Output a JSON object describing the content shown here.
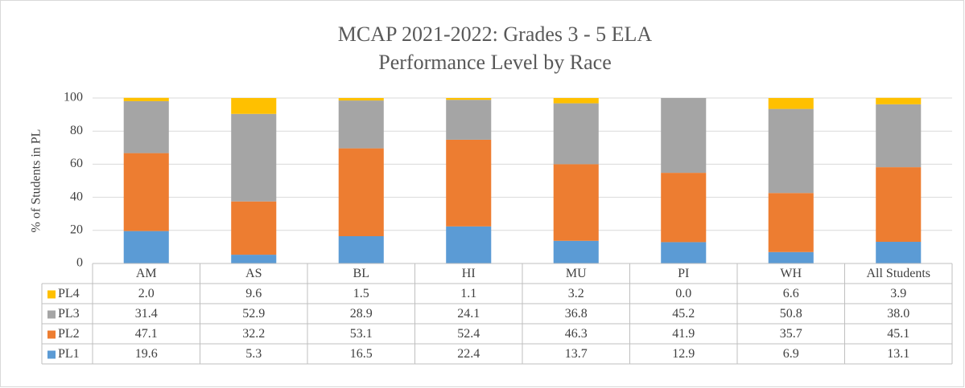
{
  "chart_data": {
    "type": "stacked_bar",
    "title": "MCAP 2021-2022:  Grades  3 - 5 ELA",
    "subtitle": "Performance  Level by Race",
    "y_label": "% of Students in PL",
    "categories": [
      "AM",
      "AS",
      "BL",
      "HI",
      "MU",
      "PI",
      "WH",
      "All Students"
    ],
    "series": [
      {
        "name": "PL1",
        "color": "#5b9bd5",
        "values": [
          19.6,
          5.3,
          16.5,
          22.4,
          13.7,
          12.9,
          6.9,
          13.1
        ],
        "value_labels": [
          "19.6",
          "5.3",
          "16.5",
          "22.4",
          "13.7",
          "12.9",
          "6.9",
          "13.1"
        ]
      },
      {
        "name": "PL2",
        "color": "#ed7d31",
        "values": [
          47.1,
          32.2,
          53.1,
          52.4,
          46.3,
          41.9,
          35.7,
          45.1
        ],
        "value_labels": [
          "47.1",
          "32.2",
          "53.1",
          "52.4",
          "46.3",
          "41.9",
          "35.7",
          "45.1"
        ]
      },
      {
        "name": "PL3",
        "color": "#a5a5a5",
        "values": [
          31.4,
          52.9,
          28.9,
          24.1,
          36.8,
          45.2,
          50.8,
          38.0
        ],
        "value_labels": [
          "31.4",
          "52.9",
          "28.9",
          "24.1",
          "36.8",
          "45.2",
          "50.8",
          "38.0"
        ]
      },
      {
        "name": "PL4",
        "color": "#ffc000",
        "values": [
          2.0,
          9.6,
          1.5,
          1.1,
          3.2,
          0.0,
          6.6,
          3.9
        ],
        "value_labels": [
          "2.0",
          "9.6",
          "1.5",
          "1.1",
          "3.2",
          "0.0",
          "6.6",
          "3.9"
        ]
      }
    ],
    "ylim": [
      0,
      100
    ],
    "yticks": [
      0,
      20,
      40,
      60,
      80,
      100
    ],
    "grid": true,
    "legend": "data-table"
  }
}
